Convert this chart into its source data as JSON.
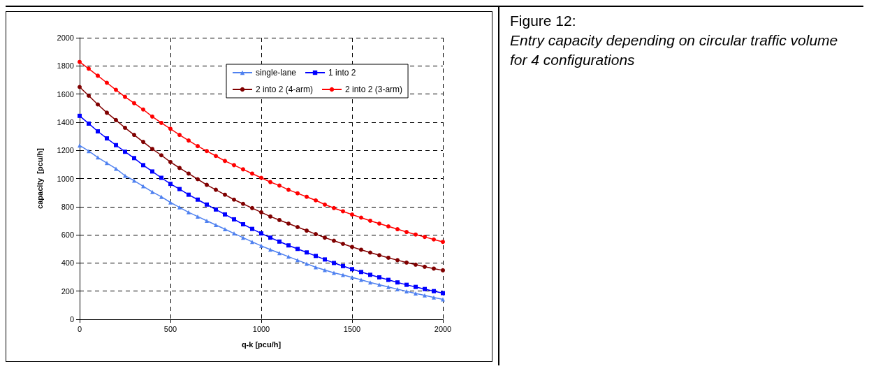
{
  "chart_data": {
    "type": "line",
    "title": "Figure 12:",
    "subtitle": "Entry capacity depending on circular traffic volume for 4 configurations",
    "xlabel": "q-k [pcu/h]",
    "ylabel": "capacity  [pcu/h]",
    "x": [
      0,
      50,
      100,
      150,
      200,
      250,
      300,
      350,
      400,
      450,
      500,
      550,
      600,
      650,
      700,
      750,
      800,
      850,
      900,
      950,
      1000,
      1050,
      1100,
      1150,
      1200,
      1250,
      1300,
      1350,
      1400,
      1450,
      1500,
      1550,
      1600,
      1650,
      1700,
      1750,
      1800,
      1850,
      1900,
      1950,
      2000
    ],
    "series": [
      {
        "name": "single-lane",
        "color": "#4f81f0",
        "marker": "triangle",
        "values": [
          1235,
          1195,
          1150,
          1110,
          1070,
          1020,
          985,
          945,
          905,
          870,
          830,
          795,
          760,
          730,
          700,
          670,
          640,
          610,
          580,
          550,
          522,
          495,
          470,
          445,
          420,
          395,
          370,
          350,
          330,
          315,
          298,
          280,
          262,
          246,
          230,
          214,
          199,
          184,
          170,
          155,
          141
        ]
      },
      {
        "name": "1 into 2",
        "color": "#0000ff",
        "marker": "square",
        "values": [
          1445,
          1390,
          1335,
          1285,
          1237,
          1190,
          1145,
          1095,
          1050,
          1005,
          962,
          925,
          885,
          850,
          815,
          780,
          745,
          710,
          675,
          642,
          610,
          580,
          552,
          525,
          500,
          475,
          450,
          425,
          400,
          378,
          356,
          336,
          316,
          298,
          280,
          262,
          245,
          230,
          215,
          200,
          186
        ]
      },
      {
        "name": "2 into 2 (4-arm)",
        "color": "#800000",
        "marker": "circle",
        "values": [
          1650,
          1588,
          1526,
          1467,
          1415,
          1360,
          1310,
          1260,
          1210,
          1165,
          1117,
          1075,
          1035,
          995,
          955,
          920,
          885,
          850,
          820,
          790,
          760,
          730,
          705,
          680,
          655,
          630,
          605,
          580,
          558,
          536,
          514,
          494,
          474,
          455,
          437,
          420,
          403,
          388,
          373,
          360,
          348
        ]
      },
      {
        "name": "2 into 2 (3-arm)",
        "color": "#ff0000",
        "marker": "circle",
        "values": [
          1828,
          1780,
          1730,
          1680,
          1630,
          1580,
          1535,
          1490,
          1440,
          1395,
          1353,
          1310,
          1270,
          1230,
          1195,
          1160,
          1125,
          1095,
          1065,
          1035,
          1005,
          975,
          950,
          920,
          895,
          870,
          845,
          815,
          790,
          767,
          744,
          722,
          700,
          680,
          660,
          640,
          620,
          602,
          585,
          567,
          550
        ]
      }
    ],
    "xlim": [
      0,
      2000
    ],
    "xticks": [
      0,
      500,
      1000,
      1500,
      2000
    ],
    "ylim": [
      0,
      2000
    ],
    "yticks": [
      0,
      200,
      400,
      600,
      800,
      1000,
      1200,
      1400,
      1600,
      1800,
      2000
    ],
    "grid": true,
    "legend": "top",
    "line_style": "solid"
  }
}
